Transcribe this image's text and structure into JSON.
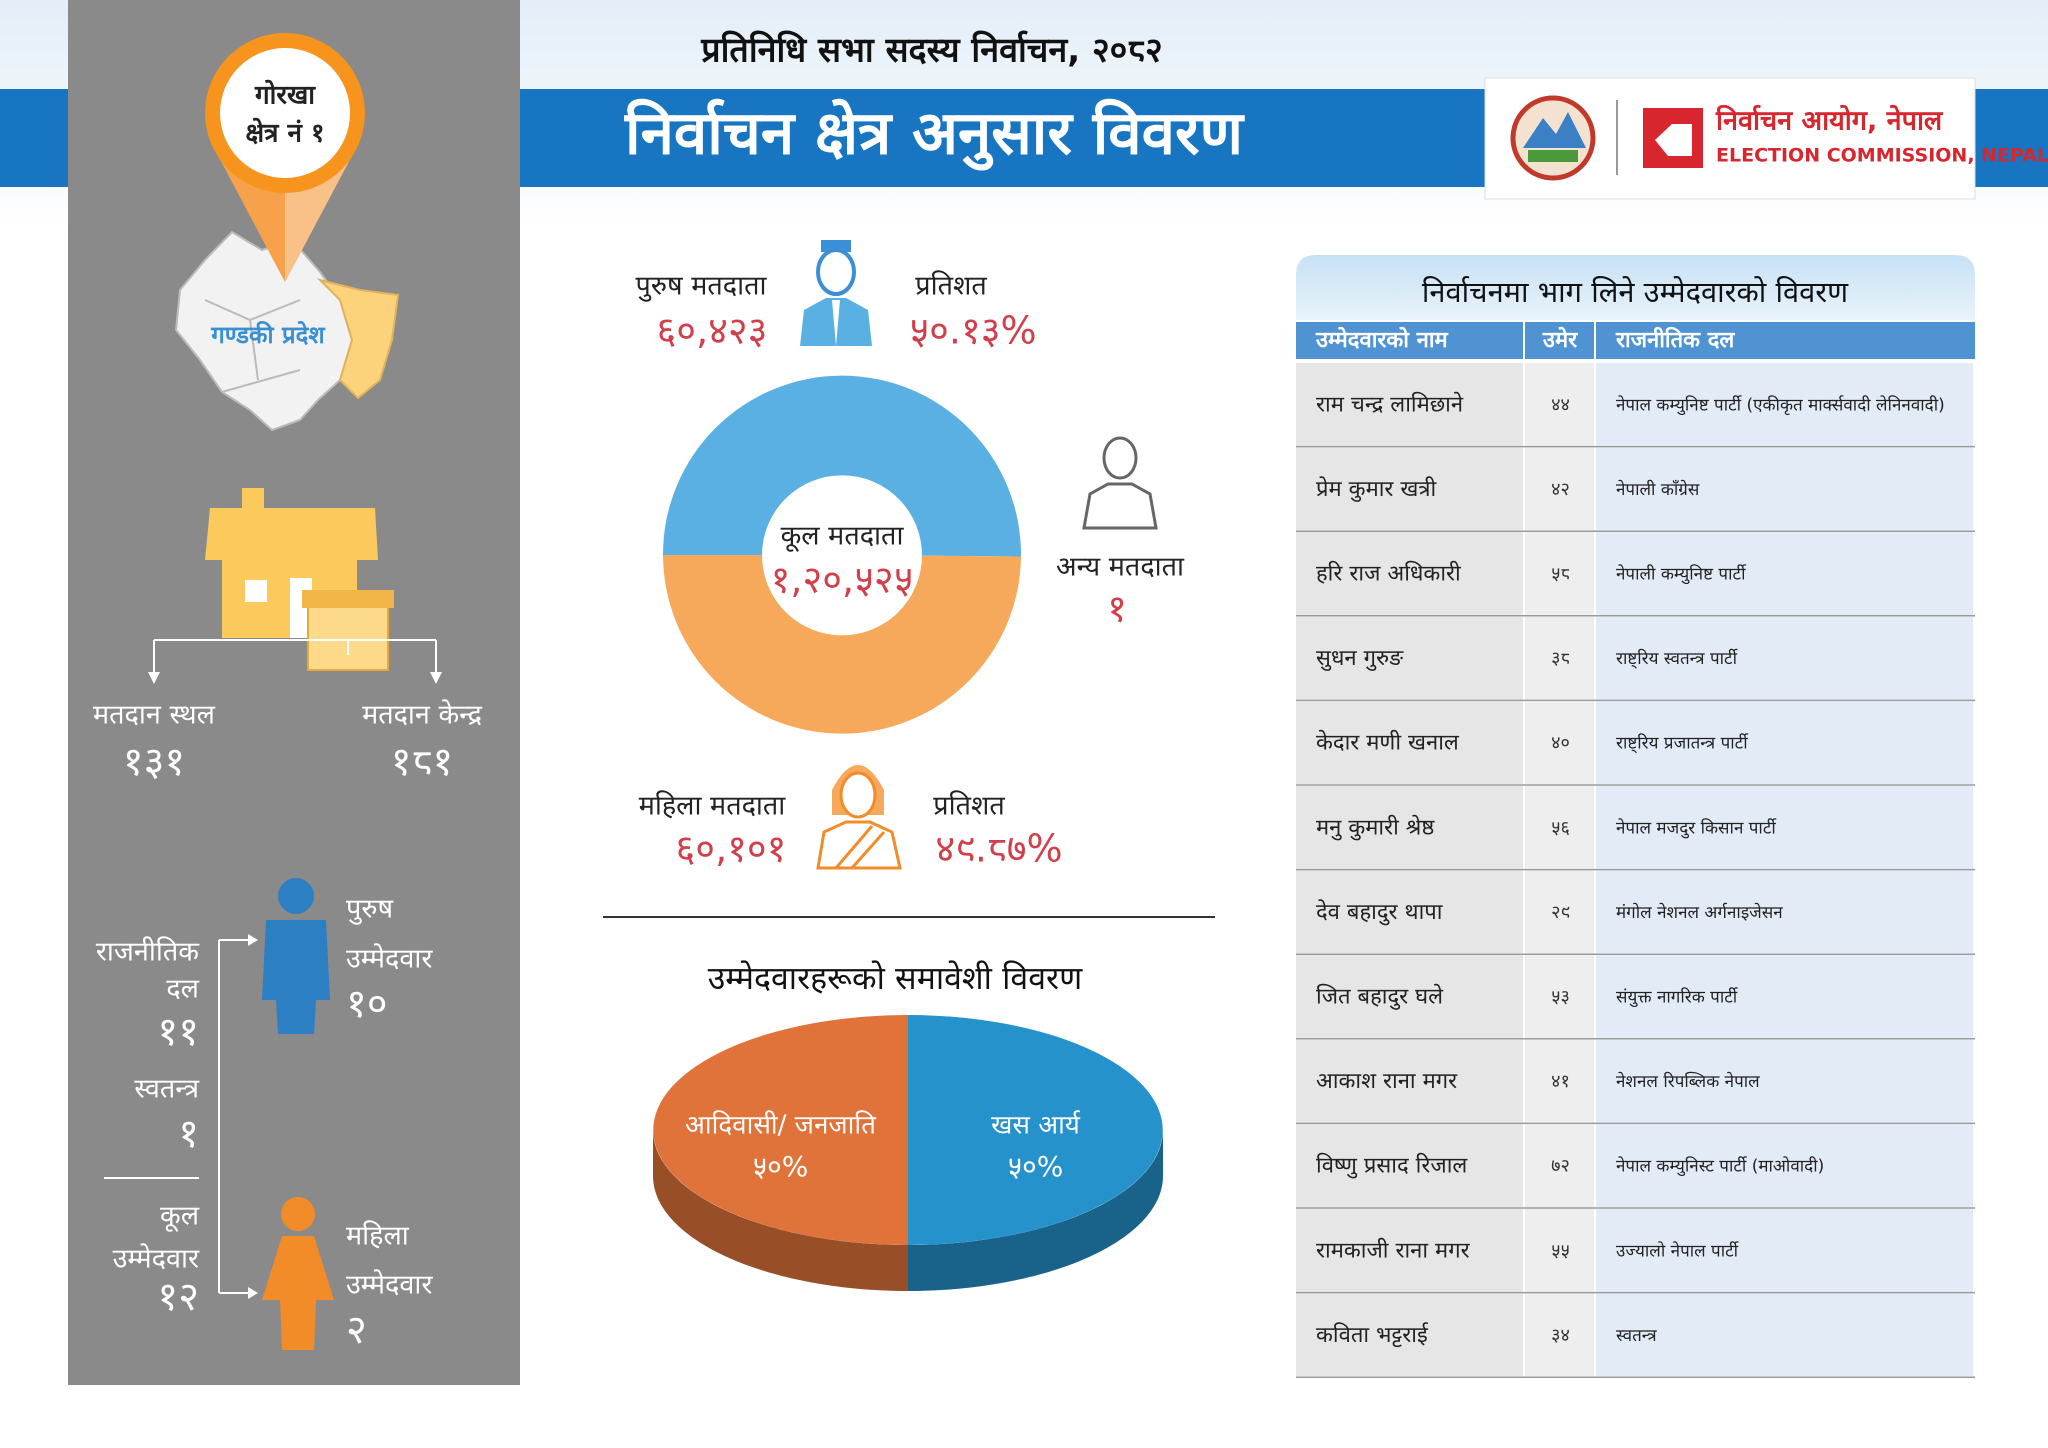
{
  "header": {
    "subtitle": "प्रतिनिधि सभा सदस्य निर्वाचन, २०८२",
    "title": "निर्वाचन क्षेत्र अनुसार विवरण",
    "logo_text": "निर्वाचन आयोग, नेपाल",
    "logo_text_en": "ELECTION COMMISSION, NEPAL"
  },
  "sidebar": {
    "district": "गोरखा",
    "constituency": "क्षेत्र नं १",
    "province": "गण्डकी प्रदेश",
    "polling_places": {
      "label": "मतदान स्थल",
      "value": "१३१"
    },
    "polling_centers": {
      "label": "मतदान केन्द्र",
      "value": "१८१"
    },
    "party_candidates": {
      "label_1": "राजनीतिक",
      "label_2": "दल",
      "value": "११"
    },
    "independent": {
      "label": "स्वतन्त्र",
      "value": "१"
    },
    "total_candidates": {
      "label_1": "कूल",
      "label_2": "उम्मेदवार",
      "value": "१२"
    },
    "male_candidates": {
      "label_1": "पुरुष",
      "label_2": "उम्मेदवार",
      "value": "१०"
    },
    "female_candidates": {
      "label_1": "महिला",
      "label_2": "उम्मेदवार",
      "value": "२"
    }
  },
  "chart_data": [
    {
      "type": "donut",
      "center_label": "कूल मतदाता",
      "center_value_label": "१,२०,५२५",
      "categories": [
        "पुरुष मतदाता",
        "महिला मतदाता",
        "अन्य मतदाता"
      ],
      "values": [
        60423,
        60101,
        1
      ],
      "value_labels": [
        "६०,४२३",
        "६०,१०१",
        "१"
      ],
      "percent_title": "प्रतिशत",
      "percent_labels": [
        "५०.१३%",
        "४९.८७%",
        null
      ],
      "colors": [
        "#5aafe3",
        "#f7a95b",
        "#9e9e9e"
      ]
    },
    {
      "type": "pie3d",
      "title": "उम्मेदवारहरूको समावेशी विवरण",
      "categories": [
        "आदिवासी/ जनजाति",
        "खस आर्य"
      ],
      "values": [
        50,
        50
      ],
      "value_labels": [
        "५०%",
        "५०%"
      ],
      "colors": [
        "#e0733a",
        "#2592cb"
      ]
    }
  ],
  "table": {
    "title": "निर्वाचनमा भाग लिने उम्मेदवारको विवरण",
    "columns": [
      "उम्मेदवारको नाम",
      "उमेर",
      "राजनीतिक दल"
    ],
    "rows": [
      [
        "राम चन्द्र लामिछाने",
        "४४",
        "नेपाल कम्युनिष्ट पार्टी (एकीकृत मार्क्सवादी लेनिनवादी)"
      ],
      [
        "प्रेम कुमार खत्री",
        "४२",
        "नेपाली काँग्रेस"
      ],
      [
        "हरि राज अधिकारी",
        "५८",
        "नेपाली कम्युनिष्ट पार्टी"
      ],
      [
        "सुधन गुरुङ",
        "३८",
        "राष्ट्रिय स्वतन्त्र पार्टी"
      ],
      [
        "केदार मणी खनाल",
        "४०",
        "राष्ट्रिय प्रजातन्त्र पार्टी"
      ],
      [
        "मनु कुमारी श्रेष्ठ",
        "५६",
        "नेपाल मजदुर किसान पार्टी"
      ],
      [
        "देव बहादुर थापा",
        "२९",
        "मंगोल नेशनल अर्गनाइजेसन"
      ],
      [
        "जित बहादुर घले",
        "५३",
        "संयुक्त नागरिक पार्टी"
      ],
      [
        "आकाश राना मगर",
        "४१",
        "नेशनल रिपब्लिक नेपाल"
      ],
      [
        "विष्णु प्रसाद रिजाल",
        "७२",
        "नेपाल कम्युनिस्ट पार्टी (माओवादी)"
      ],
      [
        "रामकाजी राना मगर",
        "५५",
        "उज्यालो नेपाल पार्टी"
      ],
      [
        "कविता भट्टराई",
        "३४",
        "स्वतन्त्र"
      ]
    ]
  }
}
